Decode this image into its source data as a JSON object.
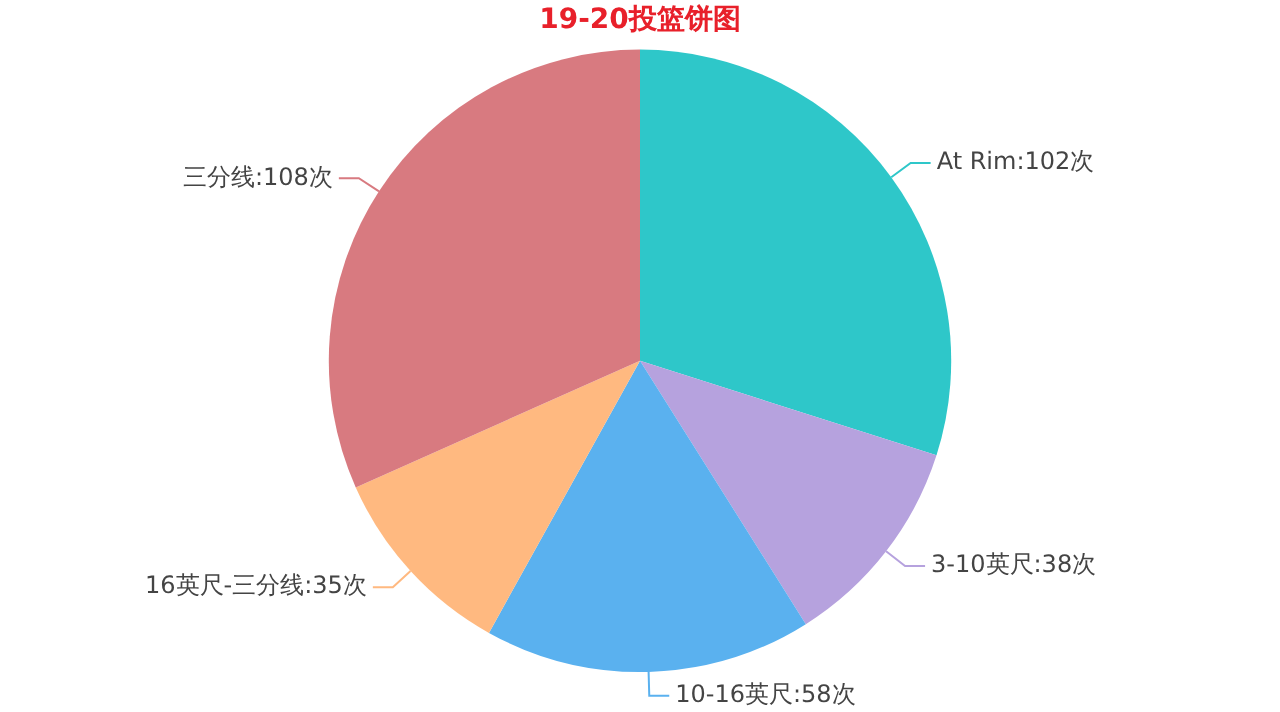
{
  "chart_data": {
    "type": "pie",
    "title": "19-20投篮饼图",
    "categories": [
      "At Rim",
      "3-10英尺",
      "10-16英尺",
      "16英尺-三分线",
      "三分线"
    ],
    "values": [
      102,
      38,
      58,
      35,
      108
    ],
    "value_labels": [
      "102次",
      "38次",
      "58次",
      "35次",
      "108次"
    ],
    "colors": [
      "#2ec7c9",
      "#b6a2de",
      "#5ab1ef",
      "#ffb980",
      "#d87a80"
    ],
    "legend": false
  }
}
